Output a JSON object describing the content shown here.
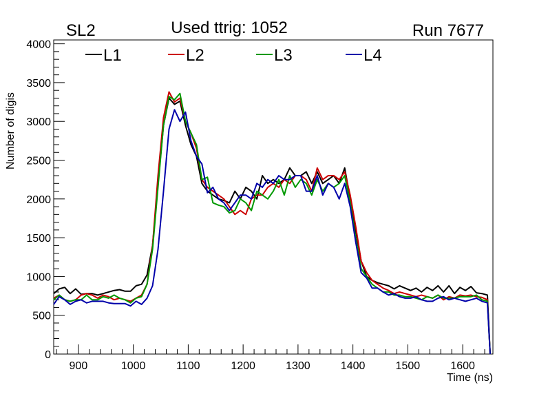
{
  "header": {
    "left_label": "SL2",
    "title": "Used ttrig: 1052",
    "right_label": "Run 7677"
  },
  "chart_data": {
    "type": "line",
    "title": "Used ttrig: 1052",
    "xlabel": "Time (ns)",
    "ylabel": "Number of digis",
    "xlim": [
      855,
      1655
    ],
    "ylim": [
      0,
      4050
    ],
    "x_ticks": [
      900,
      1000,
      1100,
      1200,
      1300,
      1400,
      1500,
      1600
    ],
    "y_ticks": [
      0,
      500,
      1000,
      1500,
      2000,
      2500,
      3000,
      3500,
      4000
    ],
    "legend_position": "top",
    "grid": false,
    "x": [
      855,
      865,
      875,
      885,
      895,
      905,
      915,
      925,
      935,
      945,
      955,
      965,
      975,
      985,
      995,
      1005,
      1015,
      1025,
      1035,
      1045,
      1055,
      1065,
      1075,
      1085,
      1095,
      1105,
      1115,
      1125,
      1135,
      1145,
      1155,
      1165,
      1175,
      1185,
      1195,
      1205,
      1215,
      1225,
      1235,
      1245,
      1255,
      1265,
      1275,
      1285,
      1295,
      1305,
      1315,
      1325,
      1335,
      1345,
      1355,
      1365,
      1375,
      1385,
      1395,
      1405,
      1415,
      1425,
      1435,
      1445,
      1455,
      1465,
      1475,
      1485,
      1495,
      1505,
      1515,
      1525,
      1535,
      1545,
      1555,
      1565,
      1575,
      1585,
      1595,
      1605,
      1615,
      1625,
      1635,
      1645,
      1650
    ],
    "series": [
      {
        "name": "L1",
        "color": "#000000",
        "values": [
          780,
          840,
          860,
          780,
          840,
          770,
          780,
          780,
          760,
          780,
          800,
          820,
          830,
          810,
          810,
          880,
          900,
          1020,
          1400,
          2200,
          2950,
          3300,
          3220,
          3260,
          2950,
          2700,
          2550,
          2200,
          2100,
          2050,
          2000,
          1980,
          1950,
          2100,
          2000,
          2150,
          2100,
          2000,
          2300,
          2200,
          2250,
          2200,
          2250,
          2400,
          2300,
          2300,
          2350,
          2200,
          2350,
          2200,
          2250,
          2300,
          2200,
          2400,
          2000,
          1600,
          1200,
          1000,
          950,
          920,
          900,
          880,
          840,
          880,
          850,
          820,
          850,
          800,
          860,
          820,
          880,
          800,
          880,
          780,
          860,
          820,
          870,
          790,
          780,
          760,
          0
        ]
      },
      {
        "name": "L2",
        "color": "#cc0000",
        "values": [
          720,
          760,
          700,
          680,
          700,
          760,
          780,
          760,
          720,
          760,
          740,
          700,
          720,
          700,
          680,
          720,
          760,
          900,
          1400,
          2300,
          3050,
          3380,
          3250,
          3300,
          3000,
          2850,
          2650,
          2250,
          2150,
          2100,
          2050,
          2000,
          1900,
          1800,
          1850,
          1800,
          2000,
          2050,
          2050,
          2150,
          2200,
          2150,
          2250,
          2200,
          2300,
          2300,
          2250,
          2100,
          2400,
          2250,
          2300,
          2300,
          2250,
          2350,
          2050,
          1650,
          1200,
          1050,
          950,
          900,
          850,
          820,
          780,
          800,
          780,
          760,
          740,
          760,
          740,
          720,
          760,
          700,
          740,
          720,
          760,
          750,
          760,
          740,
          730,
          700,
          0
        ]
      },
      {
        "name": "L3",
        "color": "#009900",
        "values": [
          700,
          760,
          700,
          680,
          700,
          700,
          760,
          700,
          700,
          740,
          720,
          760,
          720,
          700,
          660,
          720,
          740,
          900,
          1350,
          2150,
          2950,
          3320,
          3280,
          3360,
          3000,
          2850,
          2700,
          2250,
          2280,
          1950,
          1920,
          1900,
          1820,
          1850,
          2000,
          1950,
          1850,
          2100,
          2050,
          2000,
          2100,
          2250,
          2050,
          2300,
          2150,
          2250,
          2200,
          2050,
          2250,
          2100,
          2200,
          2150,
          2200,
          2300,
          1950,
          1500,
          1100,
          1000,
          900,
          850,
          800,
          800,
          760,
          760,
          740,
          740,
          720,
          700,
          740,
          720,
          760,
          720,
          720,
          720,
          740,
          740,
          740,
          760,
          700,
          680,
          0
        ]
      },
      {
        "name": "L4",
        "color": "#0000aa",
        "values": [
          640,
          740,
          700,
          640,
          680,
          700,
          660,
          680,
          680,
          680,
          660,
          650,
          650,
          650,
          620,
          680,
          640,
          720,
          880,
          1350,
          2100,
          2900,
          3150,
          3000,
          3120,
          2750,
          2550,
          2450,
          2080,
          2150,
          2000,
          1950,
          1850,
          1950,
          2050,
          2050,
          2000,
          2200,
          2150,
          2250,
          2200,
          2300,
          2250,
          2250,
          2300,
          2300,
          2100,
          2100,
          2300,
          2050,
          2200,
          2150,
          2000,
          2200,
          1900,
          1450,
          1050,
          980,
          850,
          850,
          800,
          760,
          780,
          740,
          720,
          720,
          740,
          700,
          680,
          680,
          720,
          740,
          700,
          720,
          700,
          680,
          700,
          720,
          680,
          660,
          0
        ]
      }
    ]
  }
}
